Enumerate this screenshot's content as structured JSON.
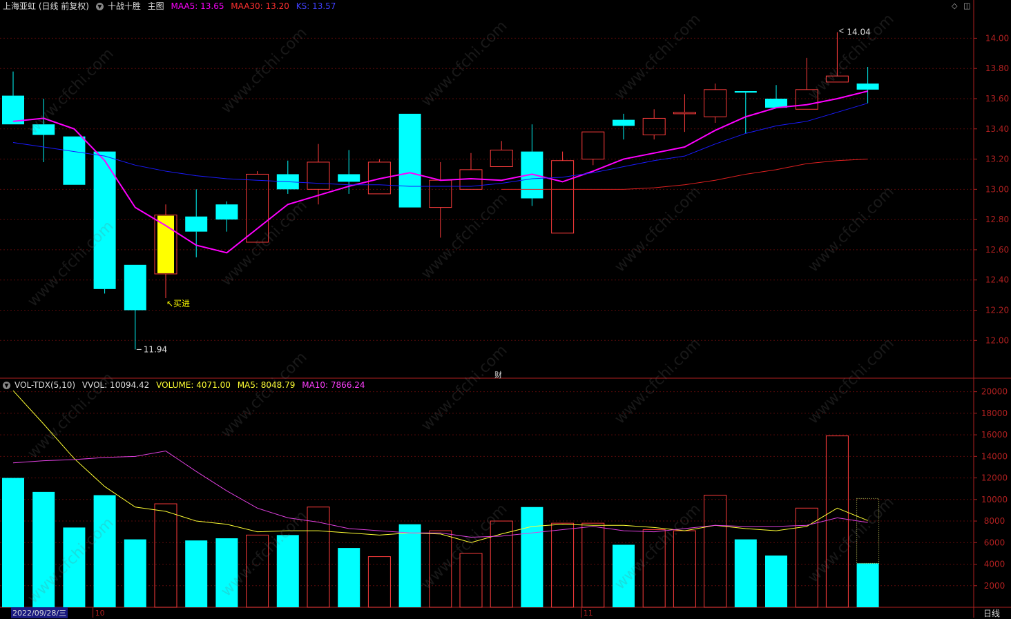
{
  "main_header": {
    "stock": "上海亚虹 (日线 前复权)",
    "indicator": "十战十胜",
    "panel": "主图",
    "maa5": "MAA5: 13.65",
    "maa30": "MAA30: 13.20",
    "ks": "KS: 13.57"
  },
  "vol_header": {
    "name": "VOL-TDX(5,10)",
    "vvol": "VVOL: 10094.42",
    "volume": "VOLUME: 4071.00",
    "ma5": "MA5: 8048.79",
    "ma10": "MA10: 7866.24"
  },
  "annotations": {
    "high_label": "14.04",
    "low_label": "11.94",
    "buy_label": "买进",
    "center_mark": "财"
  },
  "footer": {
    "date": "2022/09/28/三",
    "period": "日线"
  },
  "watermark": "www.cfchi.com",
  "colors": {
    "up": "#ff3c3c",
    "down": "#00ffff",
    "buy": "#ffff00",
    "maa5": "#ff00ff",
    "maa30": "#e02020",
    "ks": "#1a1aff",
    "vol_ma5": "#ffff33",
    "vol_ma10": "#e040e0",
    "axis": "#b02020"
  },
  "chart_data": [
    {
      "type": "candlestick",
      "title": "上海亚虹 (日线 前复权)",
      "x_month_labels": [
        {
          "index": 3,
          "label": "10"
        },
        {
          "index": 19,
          "label": "11"
        }
      ],
      "ylim": [
        11.75,
        14.18
      ],
      "y_ticks": [
        12.0,
        12.2,
        12.4,
        12.6,
        12.8,
        13.0,
        13.2,
        13.4,
        13.6,
        13.8,
        14.0
      ],
      "grid": true,
      "candles": [
        {
          "o": 13.62,
          "h": 13.78,
          "l": 13.43,
          "c": 13.43
        },
        {
          "o": 13.43,
          "h": 13.6,
          "l": 13.18,
          "c": 13.36
        },
        {
          "o": 13.35,
          "h": 13.35,
          "l": 13.03,
          "c": 13.03
        },
        {
          "o": 13.25,
          "h": 13.25,
          "l": 12.31,
          "c": 12.34
        },
        {
          "o": 12.5,
          "h": 12.5,
          "l": 11.94,
          "c": 12.2
        },
        {
          "o": 12.44,
          "h": 12.9,
          "l": 12.28,
          "c": 12.83,
          "buy": true
        },
        {
          "o": 12.82,
          "h": 13.0,
          "l": 12.55,
          "c": 12.72
        },
        {
          "o": 12.9,
          "h": 12.92,
          "l": 12.72,
          "c": 12.8
        },
        {
          "o": 12.65,
          "h": 13.12,
          "l": 12.65,
          "c": 13.1
        },
        {
          "o": 13.1,
          "h": 13.19,
          "l": 12.97,
          "c": 13.0
        },
        {
          "o": 13.0,
          "h": 13.3,
          "l": 12.9,
          "c": 13.18
        },
        {
          "o": 13.1,
          "h": 13.26,
          "l": 12.97,
          "c": 13.05
        },
        {
          "o": 12.97,
          "h": 13.2,
          "l": 12.97,
          "c": 13.18
        },
        {
          "o": 13.5,
          "h": 13.5,
          "l": 12.88,
          "c": 12.88
        },
        {
          "o": 12.88,
          "h": 13.18,
          "l": 12.68,
          "c": 13.06
        },
        {
          "o": 13.0,
          "h": 13.24,
          "l": 13.0,
          "c": 13.13
        },
        {
          "o": 13.15,
          "h": 13.32,
          "l": 13.15,
          "c": 13.26
        },
        {
          "o": 13.25,
          "h": 13.43,
          "l": 12.89,
          "c": 12.94
        },
        {
          "o": 12.71,
          "h": 13.25,
          "l": 12.71,
          "c": 13.19
        },
        {
          "o": 13.2,
          "h": 13.38,
          "l": 13.16,
          "c": 13.38
        },
        {
          "o": 13.46,
          "h": 13.5,
          "l": 13.33,
          "c": 13.42
        },
        {
          "o": 13.36,
          "h": 13.53,
          "l": 13.33,
          "c": 13.47
        },
        {
          "o": 13.5,
          "h": 13.63,
          "l": 13.38,
          "c": 13.51
        },
        {
          "o": 13.48,
          "h": 13.7,
          "l": 13.44,
          "c": 13.66
        },
        {
          "o": 13.65,
          "h": 13.65,
          "l": 13.37,
          "c": 13.64
        },
        {
          "o": 13.6,
          "h": 13.69,
          "l": 13.54,
          "c": 13.54
        },
        {
          "o": 13.53,
          "h": 13.87,
          "l": 13.53,
          "c": 13.66
        },
        {
          "o": 13.71,
          "h": 14.04,
          "l": 13.71,
          "c": 13.75
        },
        {
          "o": 13.7,
          "h": 13.81,
          "l": 13.57,
          "c": 13.66
        }
      ],
      "series": [
        {
          "name": "MAA5",
          "values": [
            13.45,
            13.47,
            13.4,
            13.19,
            12.88,
            12.76,
            12.63,
            12.58,
            12.74,
            12.9,
            12.96,
            13.02,
            13.07,
            13.11,
            13.06,
            13.07,
            13.06,
            13.1,
            13.05,
            13.12,
            13.2,
            13.24,
            13.28,
            13.39,
            13.48,
            13.54,
            13.56,
            13.6,
            13.65
          ]
        },
        {
          "name": "MAA30",
          "values": [
            null,
            null,
            null,
            null,
            null,
            null,
            null,
            null,
            null,
            null,
            null,
            null,
            null,
            null,
            null,
            null,
            13.0,
            13.0,
            13.0,
            13.0,
            13.0,
            13.01,
            13.03,
            13.06,
            13.1,
            13.13,
            13.17,
            13.19,
            13.2
          ]
        },
        {
          "name": "KS",
          "values": [
            13.31,
            13.28,
            13.25,
            13.22,
            13.16,
            13.12,
            13.09,
            13.07,
            13.06,
            13.05,
            13.04,
            13.03,
            13.03,
            13.02,
            13.02,
            13.02,
            13.04,
            13.07,
            13.08,
            13.11,
            13.15,
            13.19,
            13.22,
            13.3,
            13.37,
            13.42,
            13.45,
            13.51,
            13.57
          ]
        }
      ]
    },
    {
      "type": "bar",
      "title": "VOL-TDX(5,10)",
      "ylim": [
        0,
        21000
      ],
      "y_ticks": [
        2000,
        4000,
        6000,
        8000,
        10000,
        12000,
        14000,
        16000,
        18000,
        20000
      ],
      "values": [
        12000,
        10700,
        7400,
        10400,
        6300,
        9600,
        6200,
        6400,
        6700,
        6700,
        9300,
        5500,
        4700,
        7700,
        7100,
        5000,
        8000,
        9300,
        7800,
        7800,
        5800,
        7200,
        7100,
        10400,
        6300,
        4800,
        9200,
        15900,
        4071
      ],
      "vvol": 10094.42,
      "series": [
        {
          "name": "MA5",
          "values": [
            20100,
            17000,
            13800,
            11200,
            9300,
            8900,
            8000,
            7700,
            7000,
            7100,
            7100,
            6900,
            6700,
            6900,
            6800,
            6000,
            6800,
            7500,
            7700,
            7600,
            7600,
            7400,
            7100,
            7600,
            7300,
            7100,
            7500,
            9200,
            8048.79
          ]
        },
        {
          "name": "MA10",
          "values": [
            13400,
            13600,
            13700,
            13900,
            14000,
            14500,
            12600,
            10800,
            9200,
            8300,
            7900,
            7300,
            7100,
            6900,
            6900,
            6500,
            6600,
            6900,
            7200,
            7500,
            7100,
            7000,
            7300,
            7600,
            7500,
            7500,
            7600,
            8300,
            7866.24
          ]
        }
      ]
    }
  ]
}
